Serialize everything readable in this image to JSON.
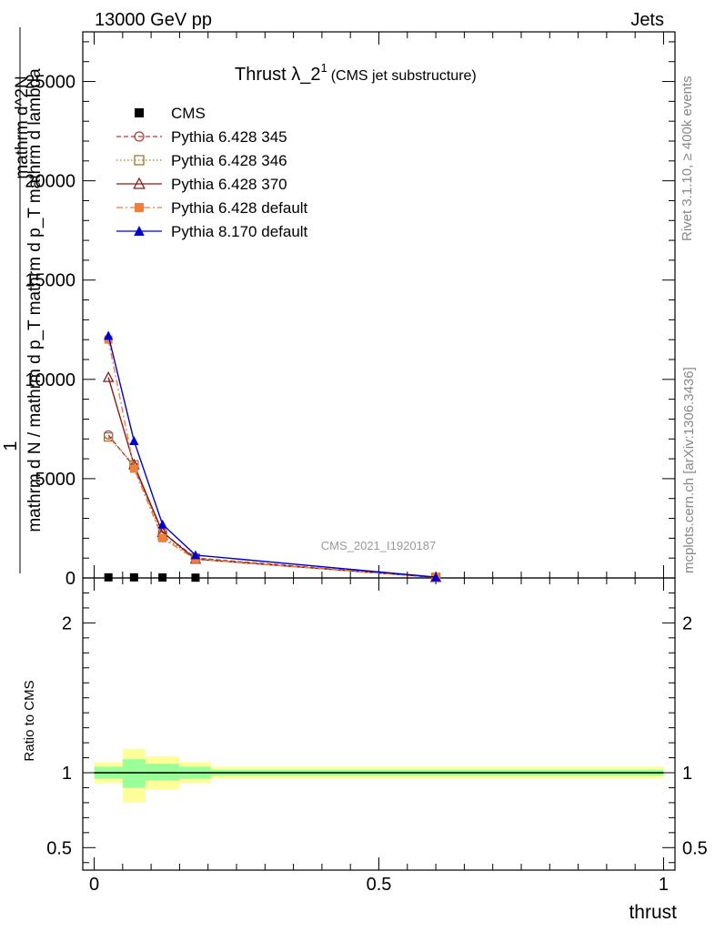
{
  "header": {
    "left": "13000 GeV pp",
    "right": "Jets"
  },
  "side": {
    "rivet": "Rivet 3.1.10, ≥ 400k events",
    "mcplots": "mcplots.cern.ch [arXiv:1306.3436]"
  },
  "chart_data": [
    {
      "type": "line",
      "title": "Thrust λ_2",
      "title_sup": "1",
      "subtitle": "(CMS jet substructure)",
      "watermark": "CMS_2021_I1920187",
      "ylabel_lines": [
        "1",
        "mathrm d N / mathrm d p_T mathrm d p_T mathrm d lambda",
        "mathrm d^2N"
      ],
      "ylabel_main": "mathrm dN / mathrm d p",
      "ylabel_sub_T": "T",
      "ylabel_tail": "mathrm d p",
      "ylabel_tail2": "mathrm d lambda",
      "ylabel_top": "mathrm d",
      "ylabel_top_sup": "2",
      "ylabel_top_N": "N",
      "ylabel_one": "1",
      "xlim": [
        -0.02,
        1.02
      ],
      "ylim": [
        0,
        27500
      ],
      "yticks": [
        0,
        5000,
        10000,
        15000,
        20000,
        25000
      ],
      "ytick_labels": [
        "0",
        "5000",
        "10000",
        "15000",
        "20000",
        "25000"
      ],
      "legend_position": "top-left",
      "series": [
        {
          "name": "CMS",
          "marker": "square-filled",
          "color": "#000000",
          "x": [
            0.025,
            0.07,
            0.12,
            0.178,
            0.6
          ],
          "y": [
            30,
            30,
            25,
            15,
            2
          ]
        },
        {
          "name": "Pythia 6.428 345",
          "marker": "circle-open",
          "line": "dashed",
          "color": "#b03c3c",
          "x": [
            0.025,
            0.07,
            0.12,
            0.178,
            0.6
          ],
          "y": [
            7200,
            5600,
            2300,
            1000,
            30
          ]
        },
        {
          "name": "Pythia 6.428 346",
          "marker": "square-open",
          "line": "dotted",
          "color": "#9a7a30",
          "x": [
            0.025,
            0.07,
            0.12,
            0.178,
            0.6
          ],
          "y": [
            7100,
            5700,
            2100,
            1000,
            30
          ]
        },
        {
          "name": "Pythia 6.428 370",
          "marker": "triangle-open",
          "line": "solid",
          "color": "#8b1a1a",
          "x": [
            0.025,
            0.07,
            0.12,
            0.178,
            0.6
          ],
          "y": [
            10100,
            5700,
            2300,
            950,
            30
          ]
        },
        {
          "name": "Pythia 6.428 default",
          "marker": "square-filled",
          "line": "dashdot",
          "color": "#f07f3c",
          "x": [
            0.025,
            0.07,
            0.12,
            0.178,
            0.6
          ],
          "y": [
            12000,
            5500,
            2000,
            950,
            30
          ]
        },
        {
          "name": "Pythia 8.170 default",
          "marker": "triangle-filled",
          "line": "solid",
          "color": "#0000cc",
          "x": [
            0.025,
            0.07,
            0.12,
            0.178,
            0.6
          ],
          "y": [
            12200,
            6900,
            2700,
            1150,
            40
          ]
        }
      ]
    },
    {
      "type": "area",
      "ylabel": "Ratio to CMS",
      "xlabel": "thrust",
      "xlim": [
        -0.02,
        1.02
      ],
      "ylim": [
        0.35,
        2.3
      ],
      "yticks": [
        0.5,
        1,
        2
      ],
      "ytick_labels": [
        "0.5",
        "1",
        "2"
      ],
      "xticks": [
        0,
        0.5,
        1
      ],
      "xtick_labels": [
        "0",
        "0.5",
        "1"
      ],
      "bins": [
        {
          "x0": 0.0,
          "x1": 0.05,
          "yellow": [
            0.93,
            1.07
          ],
          "green": [
            0.96,
            1.04
          ]
        },
        {
          "x0": 0.05,
          "x1": 0.09,
          "yellow": [
            0.8,
            1.16
          ],
          "green": [
            0.9,
            1.09
          ]
        },
        {
          "x0": 0.09,
          "x1": 0.15,
          "yellow": [
            0.89,
            1.11
          ],
          "green": [
            0.95,
            1.06
          ]
        },
        {
          "x0": 0.15,
          "x1": 0.205,
          "yellow": [
            0.93,
            1.07
          ],
          "green": [
            0.96,
            1.04
          ]
        },
        {
          "x0": 0.205,
          "x1": 1.0,
          "yellow": [
            0.96,
            1.04
          ],
          "green": [
            0.98,
            1.02
          ]
        }
      ],
      "colors": {
        "yellow": "#ffff99",
        "green": "#99ff99",
        "ref": "#000000"
      }
    }
  ]
}
